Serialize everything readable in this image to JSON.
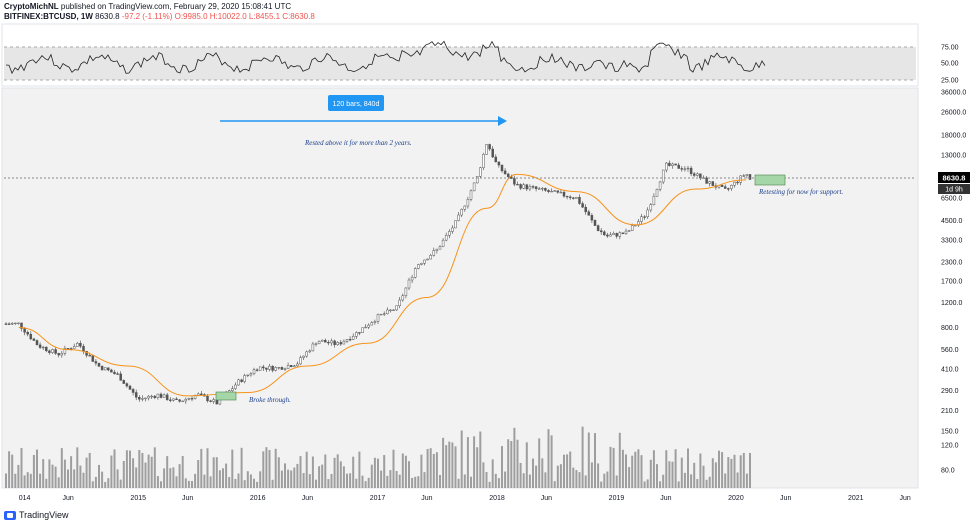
{
  "header": {
    "author": "CryptoMichNL",
    "published": "published on TradingView.com, February 29, 2020 15:08:41 UTC",
    "symbol": "BITFINEX:BTCUSD, 1W",
    "last": "8630.8",
    "change": "-97.2 (-1.11%)",
    "open": "O:9985.0",
    "high": "H:10022.0",
    "low": "L:8455.1",
    "close": "C:8630.8"
  },
  "footer": {
    "brand": "TradingView"
  },
  "colors": {
    "candle": "#555555",
    "ma": "#f7931a",
    "arrow": "#2196f3",
    "annotation": "#1a3e8c",
    "box_fill": "#a5d6a7",
    "rsi_band": "#e6e6e6",
    "volume": "#9e9e9e"
  },
  "chart_data": {
    "type": "candlestick",
    "y_scale": "log",
    "y_ticks": [
      "36000.0",
      "26000.0",
      "18000.0",
      "13000.0",
      "8630.8",
      "6500.0",
      "4500.0",
      "3300.0",
      "2300.0",
      "1700.0",
      "1200.0",
      "800.0",
      "560.0",
      "410.0",
      "290.0",
      "210.0",
      "150.0",
      "120.0",
      "80.0"
    ],
    "x_ticks": [
      "014",
      "Jun",
      "2015",
      "Jun",
      "2016",
      "Jun",
      "2017",
      "Jun",
      "2018",
      "Jun",
      "2019",
      "Jun",
      "2020",
      "Jun",
      "2021",
      "Jun"
    ],
    "rsi_ticks": [
      "75.00",
      "50.00",
      "25.00"
    ],
    "price_label": "8630.8",
    "countdown_label": "1d 9h",
    "annotations": {
      "range_box": "120 bars, 840d",
      "rested": "Rested above it for more than 2 years.",
      "broke": "Broke through.",
      "retesting": "Retesting for now for support."
    },
    "series": [
      {
        "date": "2014-01",
        "price": 850
      },
      {
        "date": "2014-03",
        "price": 600
      },
      {
        "date": "2014-05",
        "price": 520
      },
      {
        "date": "2014-07",
        "price": 620
      },
      {
        "date": "2014-09",
        "price": 430
      },
      {
        "date": "2014-11",
        "price": 370
      },
      {
        "date": "2015-01",
        "price": 250
      },
      {
        "date": "2015-03",
        "price": 270
      },
      {
        "date": "2015-05",
        "price": 240
      },
      {
        "date": "2015-07",
        "price": 270
      },
      {
        "date": "2015-09",
        "price": 235
      },
      {
        "date": "2015-11",
        "price": 330
      },
      {
        "date": "2016-01",
        "price": 420
      },
      {
        "date": "2016-03",
        "price": 415
      },
      {
        "date": "2016-05",
        "price": 450
      },
      {
        "date": "2016-07",
        "price": 650
      },
      {
        "date": "2016-09",
        "price": 610
      },
      {
        "date": "2016-11",
        "price": 740
      },
      {
        "date": "2017-01",
        "price": 950
      },
      {
        "date": "2017-03",
        "price": 1100
      },
      {
        "date": "2017-05",
        "price": 2200
      },
      {
        "date": "2017-07",
        "price": 2800
      },
      {
        "date": "2017-09",
        "price": 4500
      },
      {
        "date": "2017-11",
        "price": 9000
      },
      {
        "date": "2017-12",
        "price": 16000
      },
      {
        "date": "2018-01",
        "price": 11000
      },
      {
        "date": "2018-03",
        "price": 8000
      },
      {
        "date": "2018-05",
        "price": 7500
      },
      {
        "date": "2018-07",
        "price": 7000
      },
      {
        "date": "2018-09",
        "price": 6500
      },
      {
        "date": "2018-11",
        "price": 4000
      },
      {
        "date": "2018-12",
        "price": 3500
      },
      {
        "date": "2019-02",
        "price": 3700
      },
      {
        "date": "2019-04",
        "price": 5000
      },
      {
        "date": "2019-06",
        "price": 11000
      },
      {
        "date": "2019-08",
        "price": 10500
      },
      {
        "date": "2019-10",
        "price": 8500
      },
      {
        "date": "2019-12",
        "price": 7300
      },
      {
        "date": "2020-02",
        "price": 9700
      },
      {
        "date": "2020-02-29",
        "price": 8630.8
      }
    ],
    "ma": [
      {
        "date": "2014-01",
        "price": 800
      },
      {
        "date": "2014-06",
        "price": 560
      },
      {
        "date": "2014-12",
        "price": 430
      },
      {
        "date": "2015-06",
        "price": 265
      },
      {
        "date": "2015-12",
        "price": 280
      },
      {
        "date": "2016-06",
        "price": 430
      },
      {
        "date": "2016-12",
        "price": 620
      },
      {
        "date": "2017-06",
        "price": 1300
      },
      {
        "date": "2017-12",
        "price": 5500
      },
      {
        "date": "2018-03",
        "price": 9500
      },
      {
        "date": "2018-09",
        "price": 7200
      },
      {
        "date": "2019-03",
        "price": 4200
      },
      {
        "date": "2019-09",
        "price": 7500
      },
      {
        "date": "2020-02",
        "price": 8700
      }
    ]
  }
}
